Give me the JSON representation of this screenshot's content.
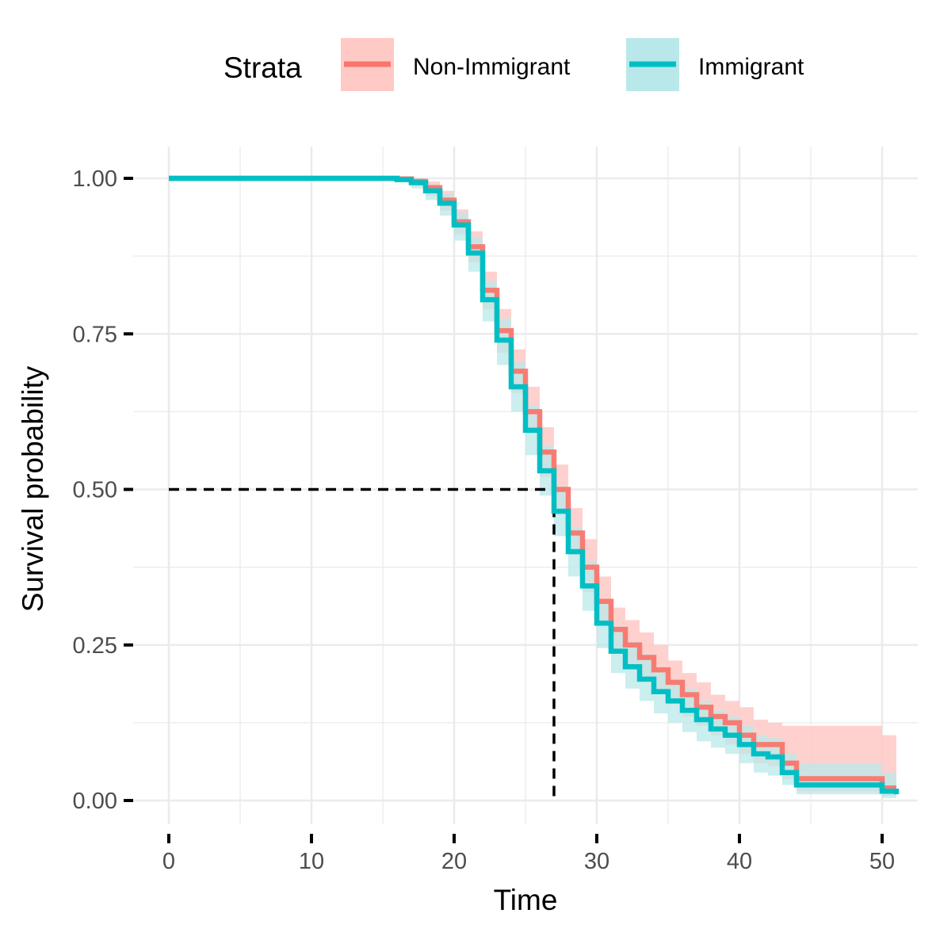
{
  "chart_data": {
    "type": "line",
    "subtype": "kaplan-meier step curve with confidence bands",
    "xlabel": "Time",
    "ylabel": "Survival probability",
    "xlim": [
      0,
      51
    ],
    "ylim": [
      0,
      1
    ],
    "x_ticks": [
      0,
      10,
      20,
      30,
      40,
      50
    ],
    "x_tick_labels": [
      "0",
      "10",
      "20",
      "30",
      "40",
      "50"
    ],
    "y_ticks": [
      0,
      0.25,
      0.5,
      0.75,
      1.0
    ],
    "y_tick_labels": [
      "0.00",
      "0.25",
      "0.50",
      "0.75",
      "1.00"
    ],
    "grid": true,
    "legend": {
      "title": "Strata",
      "position": "top",
      "items": [
        "Non-Immigrant",
        "Immigrant"
      ]
    },
    "median_line": {
      "x": 27,
      "y": 0.5,
      "style": "dashed"
    },
    "series": [
      {
        "name": "Non-Immigrant",
        "color": "#F8766D",
        "band_color": "#FFC9C5",
        "x": [
          0,
          16,
          17,
          18,
          19,
          20,
          21,
          22,
          23,
          24,
          25,
          26,
          27,
          28,
          29,
          30,
          31,
          32,
          33,
          34,
          35,
          36,
          37,
          38,
          39,
          40,
          41,
          42,
          43,
          44,
          45,
          50,
          51
        ],
        "y": [
          1.0,
          0.999,
          0.995,
          0.985,
          0.965,
          0.93,
          0.89,
          0.82,
          0.755,
          0.69,
          0.625,
          0.56,
          0.5,
          0.43,
          0.375,
          0.32,
          0.275,
          0.25,
          0.23,
          0.21,
          0.19,
          0.17,
          0.15,
          0.135,
          0.125,
          0.105,
          0.09,
          0.09,
          0.06,
          0.035,
          0.035,
          0.02,
          0.02
        ],
        "lower": [
          1.0,
          0.997,
          0.988,
          0.972,
          0.948,
          0.91,
          0.865,
          0.79,
          0.72,
          0.655,
          0.59,
          0.52,
          0.46,
          0.395,
          0.335,
          0.285,
          0.24,
          0.215,
          0.195,
          0.175,
          0.155,
          0.135,
          0.12,
          0.105,
          0.09,
          0.075,
          0.06,
          0.055,
          0.035,
          0.015,
          0.015,
          0.008,
          0.008
        ],
        "upper": [
          1.0,
          1.0,
          1.0,
          0.995,
          0.98,
          0.95,
          0.915,
          0.85,
          0.79,
          0.725,
          0.665,
          0.6,
          0.54,
          0.47,
          0.42,
          0.36,
          0.31,
          0.29,
          0.27,
          0.25,
          0.225,
          0.205,
          0.19,
          0.17,
          0.16,
          0.15,
          0.13,
          0.125,
          0.12,
          0.12,
          0.12,
          0.105,
          0.105
        ]
      },
      {
        "name": "Immigrant",
        "color": "#00BFC4",
        "band_color": "#B9E8EA",
        "x": [
          0,
          16,
          17,
          18,
          19,
          20,
          21,
          22,
          23,
          24,
          25,
          26,
          27,
          28,
          29,
          30,
          31,
          32,
          33,
          34,
          35,
          36,
          37,
          38,
          39,
          40,
          41,
          42,
          43,
          44,
          45,
          50,
          51
        ],
        "y": [
          1.0,
          0.998,
          0.993,
          0.98,
          0.96,
          0.925,
          0.88,
          0.805,
          0.74,
          0.665,
          0.595,
          0.53,
          0.465,
          0.4,
          0.345,
          0.285,
          0.24,
          0.215,
          0.195,
          0.175,
          0.16,
          0.145,
          0.13,
          0.115,
          0.105,
          0.09,
          0.075,
          0.07,
          0.045,
          0.025,
          0.025,
          0.015,
          0.01
        ],
        "lower": [
          1.0,
          0.994,
          0.984,
          0.965,
          0.94,
          0.9,
          0.85,
          0.77,
          0.7,
          0.625,
          0.555,
          0.49,
          0.425,
          0.36,
          0.305,
          0.245,
          0.205,
          0.18,
          0.16,
          0.14,
          0.125,
          0.11,
          0.095,
          0.085,
          0.075,
          0.06,
          0.045,
          0.04,
          0.025,
          0.01,
          0.01,
          0.004,
          0.002
        ],
        "upper": [
          1.0,
          1.0,
          1.0,
          0.99,
          0.975,
          0.945,
          0.905,
          0.835,
          0.775,
          0.705,
          0.635,
          0.57,
          0.505,
          0.44,
          0.385,
          0.32,
          0.28,
          0.255,
          0.235,
          0.21,
          0.195,
          0.18,
          0.16,
          0.145,
          0.135,
          0.12,
          0.105,
          0.1,
          0.075,
          0.06,
          0.06,
          0.045,
          0.04
        ]
      }
    ]
  }
}
